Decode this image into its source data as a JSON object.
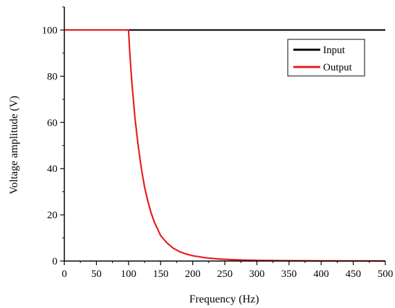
{
  "chart_data": {
    "type": "line",
    "xlabel": "Frequency (Hz)",
    "ylabel": "Voltage amplitude (V)",
    "xlim": [
      0,
      500
    ],
    "ylim": [
      0,
      110
    ],
    "x_ticks": [
      0,
      50,
      100,
      150,
      200,
      250,
      300,
      350,
      400,
      450,
      500
    ],
    "y_ticks": [
      0,
      20,
      40,
      60,
      80,
      100
    ],
    "grid": false,
    "legend_position": "top-right",
    "series": [
      {
        "name": "Input",
        "color": "#000000",
        "x": [
          0,
          500
        ],
        "y": [
          100,
          100
        ]
      },
      {
        "name": "Output",
        "color": "#e8191b",
        "x": [
          0,
          50,
          100,
          102,
          105,
          110,
          115,
          120,
          125,
          130,
          135,
          140,
          150,
          160,
          170,
          180,
          190,
          200,
          220,
          240,
          260,
          280,
          300,
          350,
          400,
          450,
          500
        ],
        "y": [
          100,
          100,
          100,
          90,
          78,
          62,
          50,
          40,
          32,
          26,
          21,
          17,
          11,
          7.8,
          5.5,
          4.0,
          3.0,
          2.3,
          1.4,
          0.9,
          0.6,
          0.4,
          0.3,
          0.15,
          0.08,
          0.05,
          0.03
        ]
      }
    ]
  }
}
